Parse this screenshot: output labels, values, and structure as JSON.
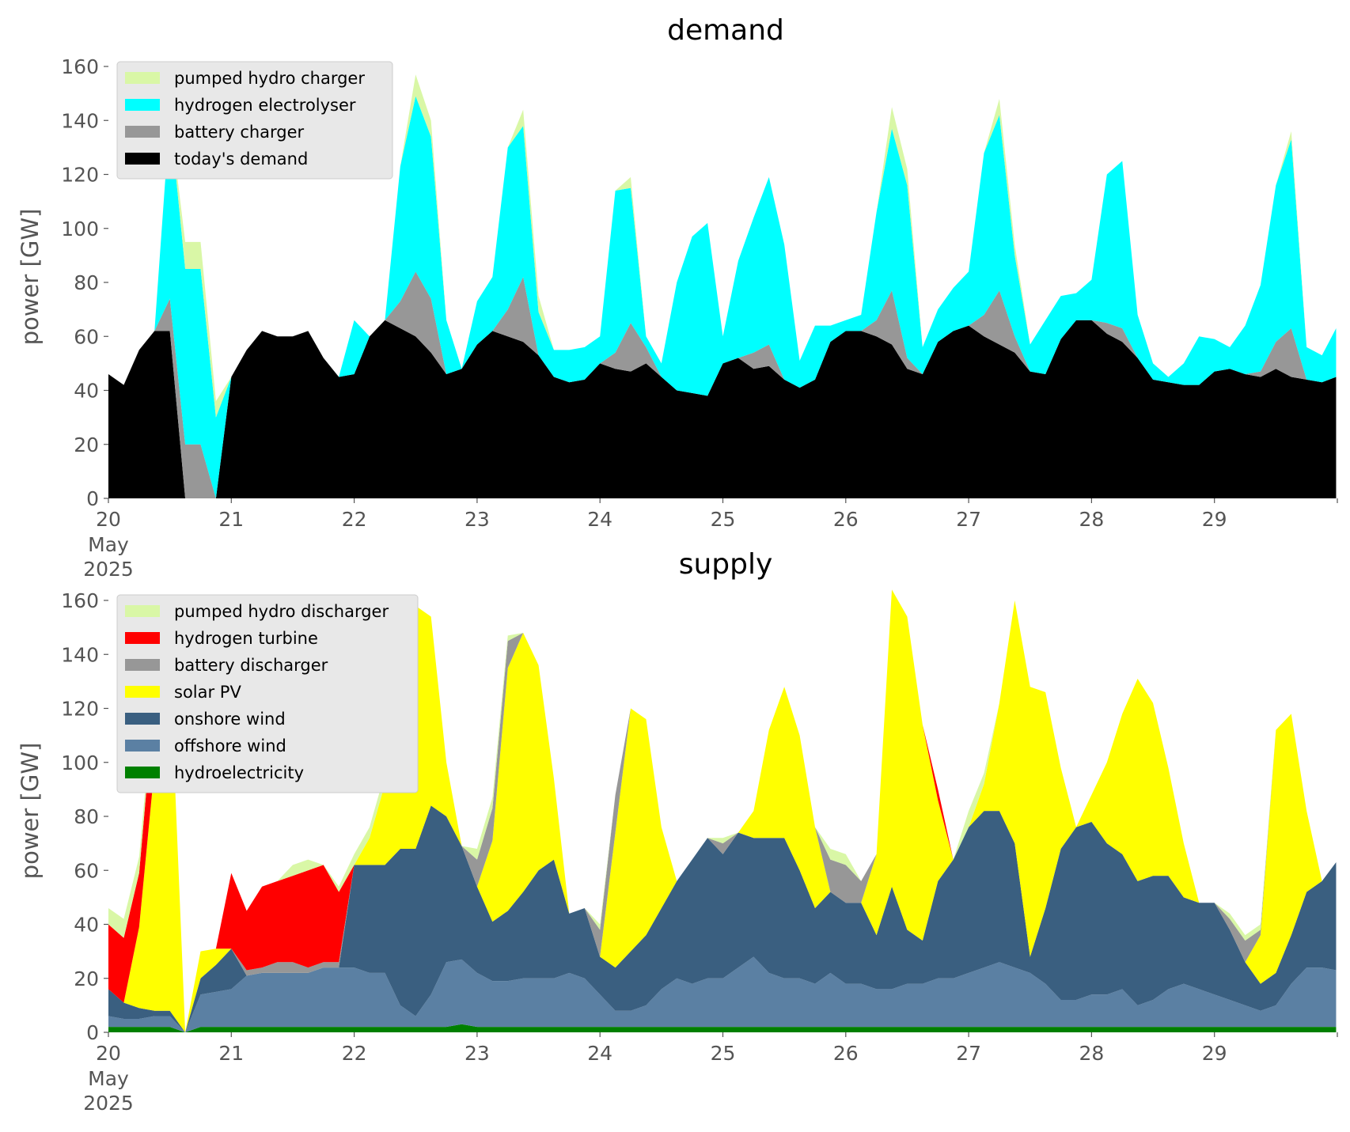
{
  "chart_data": [
    {
      "type": "area",
      "stacked": true,
      "title": "demand",
      "ylabel": "power [GW]",
      "ylim": [
        0,
        160
      ],
      "xlim": [
        "2025-05-20",
        "2025-05-30"
      ],
      "yticks": [
        0,
        20,
        40,
        60,
        80,
        100,
        120,
        140,
        160
      ],
      "xtick_labels": [
        "20",
        "21",
        "22",
        "23",
        "24",
        "25",
        "26",
        "27",
        "28",
        "29"
      ],
      "date_label_lines": [
        "May",
        "2025"
      ],
      "grid": false,
      "legend_position": "upper-left",
      "x_days": [
        0,
        0.125,
        0.25,
        0.375,
        0.5,
        0.625,
        0.75,
        0.875,
        1,
        1.125,
        1.25,
        1.375,
        1.5,
        1.625,
        1.75,
        1.875,
        2,
        2.125,
        2.25,
        2.375,
        2.5,
        2.625,
        2.75,
        2.875,
        3,
        3.125,
        3.25,
        3.375,
        3.5,
        3.625,
        3.75,
        3.875,
        4,
        4.125,
        4.25,
        4.375,
        4.5,
        4.625,
        4.75,
        4.875,
        5,
        5.125,
        5.25,
        5.375,
        5.5,
        5.625,
        5.75,
        5.875,
        6,
        6.125,
        6.25,
        6.375,
        6.5,
        6.625,
        6.75,
        6.875,
        7,
        7.125,
        7.25,
        7.375,
        7.5,
        7.625,
        7.75,
        7.875,
        8,
        8.125,
        8.25,
        8.375,
        8.5,
        8.625,
        8.75,
        8.875,
        9,
        9.125,
        9.25,
        9.375,
        9.5,
        9.625,
        9.75,
        9.875,
        9.99
      ],
      "series": [
        {
          "name": "today's demand",
          "color": "#000000",
          "values": [
            46,
            42,
            55,
            62,
            62,
            0,
            0,
            0,
            45,
            55,
            62,
            60,
            60,
            62,
            52,
            45,
            46,
            60,
            66,
            63,
            60,
            54,
            46,
            48,
            57,
            62,
            60,
            58,
            53,
            45,
            43,
            44,
            50,
            48,
            47,
            50,
            45,
            40,
            39,
            38,
            50,
            52,
            48,
            49,
            44,
            41,
            44,
            58,
            62,
            62,
            60,
            57,
            48,
            46,
            58,
            62,
            64,
            60,
            57,
            54,
            47,
            46,
            59,
            66,
            66,
            61,
            58,
            52,
            44,
            43,
            42,
            42,
            47,
            48,
            46,
            45,
            48,
            45,
            44,
            43,
            45
          ]
        },
        {
          "name": "battery charger",
          "color": "#979797",
          "values": [
            0,
            0,
            0,
            0,
            12,
            20,
            20,
            0,
            0,
            0,
            0,
            0,
            0,
            0,
            0,
            0,
            0,
            0,
            0,
            10,
            24,
            20,
            0,
            0,
            0,
            0,
            10,
            24,
            0,
            0,
            0,
            0,
            0,
            6,
            18,
            6,
            0,
            0,
            0,
            0,
            0,
            0,
            6,
            8,
            0,
            0,
            0,
            0,
            0,
            0,
            6,
            20,
            4,
            0,
            0,
            0,
            0,
            8,
            20,
            6,
            0,
            0,
            0,
            0,
            0,
            4,
            5,
            0,
            0,
            0,
            0,
            0,
            0,
            0,
            0,
            2,
            10,
            18,
            0,
            0,
            0
          ]
        },
        {
          "name": "hydrogen electrolyser",
          "color": "#00ffff",
          "values": [
            0,
            0,
            0,
            0,
            68,
            65,
            65,
            30,
            0,
            0,
            0,
            0,
            0,
            0,
            0,
            0,
            20,
            0,
            0,
            50,
            65,
            60,
            20,
            0,
            16,
            20,
            60,
            56,
            16,
            10,
            12,
            12,
            10,
            60,
            50,
            4,
            5,
            40,
            58,
            64,
            10,
            36,
            50,
            62,
            50,
            10,
            20,
            6,
            4,
            6,
            40,
            60,
            64,
            10,
            12,
            16,
            20,
            60,
            65,
            30,
            10,
            20,
            16,
            10,
            15,
            55,
            62,
            16,
            6,
            2,
            8,
            18,
            12,
            8,
            18,
            32,
            58,
            70,
            12,
            10,
            18
          ]
        },
        {
          "name": "pumped hydro charger",
          "color": "#d9f7a6",
          "values": [
            0,
            0,
            0,
            0,
            0,
            10,
            10,
            6,
            0,
            0,
            0,
            0,
            0,
            0,
            0,
            0,
            0,
            0,
            0,
            0,
            8,
            6,
            0,
            0,
            0,
            0,
            0,
            6,
            6,
            0,
            0,
            0,
            0,
            0,
            4,
            0,
            0,
            0,
            0,
            0,
            0,
            0,
            0,
            0,
            0,
            0,
            0,
            0,
            0,
            0,
            0,
            8,
            6,
            0,
            0,
            0,
            0,
            0,
            6,
            4,
            0,
            0,
            0,
            0,
            0,
            0,
            0,
            0,
            0,
            0,
            0,
            0,
            0,
            0,
            0,
            0,
            0,
            3,
            0,
            0,
            0
          ]
        }
      ]
    },
    {
      "type": "area",
      "stacked": true,
      "title": "supply",
      "ylabel": "power [GW]",
      "ylim": [
        0,
        160
      ],
      "xlim": [
        "2025-05-20",
        "2025-05-30"
      ],
      "yticks": [
        0,
        20,
        40,
        60,
        80,
        100,
        120,
        140,
        160
      ],
      "xtick_labels": [
        "20",
        "21",
        "22",
        "23",
        "24",
        "25",
        "26",
        "27",
        "28",
        "29"
      ],
      "date_label_lines": [
        "May",
        "2025"
      ],
      "grid": false,
      "legend_position": "upper-left",
      "x_days": [
        0,
        0.125,
        0.25,
        0.375,
        0.5,
        0.625,
        0.75,
        0.875,
        1,
        1.125,
        1.25,
        1.375,
        1.5,
        1.625,
        1.75,
        1.875,
        2,
        2.125,
        2.25,
        2.375,
        2.5,
        2.625,
        2.75,
        2.875,
        3,
        3.125,
        3.25,
        3.375,
        3.5,
        3.625,
        3.75,
        3.875,
        4,
        4.125,
        4.25,
        4.375,
        4.5,
        4.625,
        4.75,
        4.875,
        5,
        5.125,
        5.25,
        5.375,
        5.5,
        5.625,
        5.75,
        5.875,
        6,
        6.125,
        6.25,
        6.375,
        6.5,
        6.625,
        6.75,
        6.875,
        7,
        7.125,
        7.25,
        7.375,
        7.5,
        7.625,
        7.75,
        7.875,
        8,
        8.125,
        8.25,
        8.375,
        8.5,
        8.625,
        8.75,
        8.875,
        9,
        9.125,
        9.25,
        9.375,
        9.5,
        9.625,
        9.75,
        9.875,
        9.99
      ],
      "series": [
        {
          "name": "hydroelectricity",
          "color": "#008000",
          "values": [
            2,
            2,
            2,
            2,
            2,
            0,
            2,
            2,
            2,
            2,
            2,
            2,
            2,
            2,
            2,
            2,
            2,
            2,
            2,
            2,
            2,
            2,
            2,
            3,
            2,
            2,
            2,
            2,
            2,
            2,
            2,
            2,
            2,
            2,
            2,
            2,
            2,
            2,
            2,
            2,
            2,
            2,
            2,
            2,
            2,
            2,
            2,
            2,
            2,
            2,
            2,
            2,
            2,
            2,
            2,
            2,
            2,
            2,
            2,
            2,
            2,
            2,
            2,
            2,
            2,
            2,
            2,
            2,
            2,
            2,
            2,
            2,
            2,
            2,
            2,
            2,
            2,
            2,
            2,
            2,
            2
          ]
        },
        {
          "name": "offshore wind",
          "color": "#5b80a3",
          "values": [
            4,
            3,
            3,
            4,
            4,
            0,
            12,
            13,
            14,
            19,
            20,
            20,
            20,
            20,
            22,
            22,
            22,
            20,
            20,
            8,
            4,
            12,
            24,
            24,
            20,
            17,
            17,
            18,
            18,
            18,
            20,
            18,
            12,
            6,
            6,
            8,
            14,
            18,
            16,
            18,
            18,
            22,
            26,
            20,
            18,
            18,
            16,
            20,
            16,
            16,
            14,
            14,
            16,
            16,
            18,
            18,
            20,
            22,
            24,
            22,
            20,
            16,
            10,
            10,
            12,
            12,
            14,
            8,
            10,
            14,
            16,
            14,
            12,
            10,
            8,
            6,
            8,
            16,
            22,
            22,
            21
          ]
        },
        {
          "name": "onshore wind",
          "color": "#3a5f80",
          "values": [
            10,
            6,
            4,
            2,
            2,
            0,
            6,
            10,
            15,
            0,
            0,
            0,
            0,
            0,
            0,
            0,
            38,
            40,
            40,
            58,
            62,
            70,
            54,
            42,
            32,
            22,
            26,
            32,
            40,
            44,
            22,
            26,
            14,
            16,
            22,
            26,
            30,
            36,
            46,
            52,
            46,
            50,
            44,
            50,
            52,
            40,
            28,
            30,
            30,
            30,
            20,
            38,
            20,
            16,
            36,
            44,
            54,
            58,
            56,
            46,
            6,
            28,
            56,
            64,
            64,
            56,
            50,
            46,
            46,
            42,
            32,
            32,
            34,
            26,
            16,
            10,
            12,
            18,
            28,
            32,
            40
          ]
        },
        {
          "name": "solar PV",
          "color": "#ffff00",
          "values": [
            0,
            0,
            30,
            90,
            130,
            0,
            10,
            6,
            0,
            0,
            0,
            0,
            0,
            0,
            0,
            0,
            0,
            10,
            30,
            80,
            90,
            70,
            20,
            0,
            0,
            30,
            90,
            96,
            76,
            30,
            0,
            0,
            0,
            50,
            90,
            80,
            30,
            0,
            0,
            0,
            0,
            0,
            10,
            40,
            56,
            50,
            30,
            0,
            0,
            0,
            30,
            110,
            116,
            80,
            30,
            0,
            0,
            10,
            40,
            90,
            100,
            80,
            30,
            0,
            10,
            30,
            52,
            75,
            64,
            40,
            20,
            0,
            0,
            0,
            0,
            18,
            90,
            82,
            30,
            0,
            0
          ]
        },
        {
          "name": "battery discharger",
          "color": "#979797",
          "values": [
            0,
            0,
            0,
            0,
            0,
            0,
            0,
            0,
            0,
            2,
            2,
            4,
            4,
            2,
            2,
            2,
            0,
            0,
            0,
            0,
            0,
            0,
            0,
            0,
            10,
            12,
            10,
            0,
            0,
            0,
            0,
            0,
            10,
            14,
            0,
            0,
            0,
            0,
            0,
            0,
            4,
            0,
            0,
            0,
            0,
            0,
            0,
            12,
            14,
            8,
            0,
            0,
            0,
            0,
            0,
            0,
            0,
            0,
            0,
            0,
            0,
            0,
            0,
            0,
            0,
            0,
            0,
            0,
            0,
            0,
            0,
            0,
            0,
            4,
            8,
            2,
            0,
            0,
            0,
            0,
            0
          ]
        },
        {
          "name": "hydrogen turbine",
          "color": "#ff0000",
          "values": [
            24,
            24,
            20,
            26,
            0,
            0,
            0,
            0,
            28,
            22,
            30,
            30,
            32,
            36,
            36,
            26,
            0,
            0,
            0,
            0,
            0,
            0,
            0,
            0,
            0,
            0,
            0,
            0,
            0,
            0,
            0,
            0,
            0,
            0,
            0,
            0,
            0,
            0,
            0,
            0,
            0,
            0,
            0,
            0,
            0,
            0,
            0,
            0,
            0,
            0,
            0,
            0,
            0,
            0,
            4,
            0,
            0,
            0,
            0,
            0,
            0,
            0,
            0,
            0,
            0,
            0,
            0,
            0,
            0,
            0,
            0,
            0,
            0,
            0,
            0,
            0,
            0,
            0,
            0,
            0,
            0
          ]
        },
        {
          "name": "pumped hydro discharger",
          "color": "#d9f7a6",
          "values": [
            6,
            7,
            6,
            4,
            0,
            0,
            0,
            0,
            0,
            0,
            0,
            0,
            4,
            4,
            0,
            2,
            4,
            4,
            4,
            0,
            0,
            0,
            0,
            0,
            4,
            4,
            2,
            0,
            0,
            0,
            0,
            0,
            2,
            0,
            0,
            0,
            0,
            0,
            0,
            0,
            2,
            0,
            0,
            0,
            0,
            0,
            0,
            4,
            4,
            0,
            0,
            0,
            0,
            0,
            0,
            0,
            6,
            4,
            0,
            0,
            0,
            0,
            0,
            0,
            0,
            0,
            0,
            0,
            0,
            0,
            0,
            0,
            0,
            2,
            2,
            2,
            0,
            0,
            0,
            0,
            0
          ]
        }
      ]
    }
  ]
}
